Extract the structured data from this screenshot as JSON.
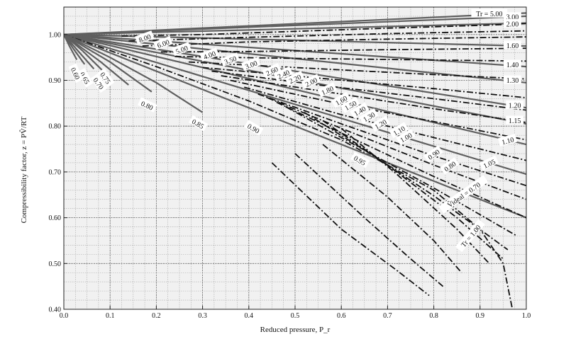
{
  "chart_data": {
    "type": "line",
    "title": "",
    "xlabel": "Reduced pressure, P_r",
    "ylabel": "Compressibility factor, z = PV̂/RT",
    "xlim": [
      0.0,
      1.0
    ],
    "ylim": [
      0.4,
      1.06
    ],
    "grid": true,
    "x_ticks": [
      "0.0",
      "0.1",
      "0.2",
      "0.3",
      "0.4",
      "0.5",
      "0.6",
      "0.7",
      "0.8",
      "0.9",
      "1.0"
    ],
    "y_ticks": [
      "0.40",
      "0.50",
      "0.60",
      "0.70",
      "0.80",
      "0.90",
      "1.00"
    ],
    "series": [
      {
        "family": "Tr",
        "name": "5.00",
        "label": "Tr = 5.00",
        "style": "solid",
        "x": [
          0,
          1
        ],
        "y": [
          1.0,
          1.047
        ]
      },
      {
        "family": "Tr",
        "name": "3.00",
        "label": "3.00",
        "style": "solid",
        "x": [
          0,
          1
        ],
        "y": [
          1.0,
          1.04
        ]
      },
      {
        "family": "Tr",
        "name": "2.00",
        "label": "2.00",
        "style": "solid",
        "x": [
          0,
          1
        ],
        "y": [
          1.0,
          1.025
        ]
      },
      {
        "family": "Tr",
        "name": "1.60",
        "label": "1.60",
        "style": "solid",
        "x": [
          0,
          1
        ],
        "y": [
          1.0,
          0.975
        ]
      },
      {
        "family": "Tr",
        "name": "1.40",
        "label": "1.40",
        "style": "solid",
        "x": [
          0,
          1
        ],
        "y": [
          1.0,
          0.93
        ]
      },
      {
        "family": "Tr",
        "name": "1.30",
        "label": "1.30",
        "style": "solid",
        "x": [
          0,
          1
        ],
        "y": [
          1.0,
          0.895
        ]
      },
      {
        "family": "Tr",
        "name": "1.20",
        "label": "1.20",
        "style": "solid",
        "x": [
          0,
          1
        ],
        "y": [
          1.0,
          0.84
        ]
      },
      {
        "family": "Tr",
        "name": "1.15",
        "label": "1.15",
        "style": "solid",
        "x": [
          0,
          1
        ],
        "y": [
          1.0,
          0.805
        ]
      },
      {
        "family": "Tr",
        "name": "1.10",
        "label": "1.10",
        "style": "solid",
        "x": [
          0,
          1
        ],
        "y": [
          1.0,
          0.76
        ]
      },
      {
        "family": "Tr",
        "name": "1.05",
        "label": "1.05",
        "style": "solid",
        "x": [
          0,
          1
        ],
        "y": [
          1.0,
          0.695
        ]
      },
      {
        "family": "Tr",
        "name": "1.00",
        "label": "Tr = 1.00",
        "style": "solid-black",
        "x": [
          0,
          0.2,
          0.4,
          0.6,
          0.8,
          0.9,
          0.95,
          0.97
        ],
        "y": [
          1.0,
          0.93,
          0.855,
          0.77,
          0.66,
          0.575,
          0.5,
          0.4
        ]
      },
      {
        "family": "Tr",
        "name": "0.95",
        "label": "0.95",
        "style": "solid",
        "x": [
          0,
          1
        ],
        "y": [
          1.0,
          0.6
        ]
      },
      {
        "family": "Tr",
        "name": "0.90",
        "label": "0.90",
        "style": "solid",
        "x": [
          0,
          0.02,
          0.1,
          0.2,
          0.3
        ],
        "y": [
          1.0,
          0.99,
          0.95,
          0.895,
          0.83
        ]
      },
      {
        "family": "Tr",
        "name": "0.85",
        "label": "0.85",
        "style": "solid",
        "x": [
          0,
          0.02,
          0.1,
          0.19
        ],
        "y": [
          1.0,
          0.988,
          0.94,
          0.875
        ]
      },
      {
        "family": "Tr",
        "name": "0.80",
        "label": "0.80",
        "style": "solid",
        "x": [
          0,
          0.02,
          0.08,
          0.14
        ],
        "y": [
          1.0,
          0.985,
          0.94,
          0.89
        ]
      },
      {
        "family": "Tr",
        "name": "0.75",
        "label": "0.75",
        "style": "solid",
        "x": [
          0,
          0.04,
          0.09
        ],
        "y": [
          1.0,
          0.965,
          0.915
        ]
      },
      {
        "family": "Tr",
        "name": "0.70",
        "label": "0.70",
        "style": "solid",
        "x": [
          0,
          0.03,
          0.065
        ],
        "y": [
          1.0,
          0.965,
          0.925
        ]
      },
      {
        "family": "Tr",
        "name": "0.65",
        "label": "0.65",
        "style": "solid",
        "x": [
          0,
          0.02,
          0.045
        ],
        "y": [
          1.0,
          0.97,
          0.935
        ]
      },
      {
        "family": "Tr",
        "name": "0.60",
        "label": "0.60",
        "style": "solid",
        "x": [
          0,
          0.012,
          0.028
        ],
        "y": [
          1.0,
          0.975,
          0.945
        ]
      },
      {
        "family": "Videal",
        "name": "8.00",
        "label": "8.00",
        "style": "dashdot",
        "x": [
          0.125,
          0.3,
          0.5,
          0.7,
          0.9,
          1.0
        ],
        "y": [
          0.997,
          1.0,
          1.007,
          1.014,
          1.02,
          1.024
        ]
      },
      {
        "family": "Videal",
        "name": "6.00",
        "label": "6.00",
        "style": "dashdot",
        "x": [
          0.14,
          0.4,
          0.7,
          1.0
        ],
        "y": [
          0.986,
          0.994,
          1.002,
          1.008
        ]
      },
      {
        "family": "Videal",
        "name": "5.00",
        "label": "5.00",
        "style": "dashdot",
        "x": [
          0.17,
          0.4,
          0.7,
          1.0
        ],
        "y": [
          0.975,
          0.984,
          0.99,
          0.995
        ]
      },
      {
        "family": "Videal",
        "name": "4.00",
        "label": "4.00",
        "style": "dashdot",
        "x": [
          0.21,
          0.4,
          0.7,
          1.0
        ],
        "y": [
          0.962,
          0.963,
          0.967,
          0.97
        ]
      },
      {
        "family": "Videal",
        "name": "3.50",
        "label": "3.50",
        "style": "dashdot",
        "x": [
          0.24,
          0.5,
          0.75,
          1.0
        ],
        "y": [
          0.952,
          0.948,
          0.945,
          0.942
        ]
      },
      {
        "family": "Videal",
        "name": "3.00",
        "label": "3.00",
        "style": "dashdot",
        "x": [
          0.27,
          0.5,
          0.75,
          1.0
        ],
        "y": [
          0.94,
          0.928,
          0.915,
          0.903
        ]
      },
      {
        "family": "Videal",
        "name": "2.60",
        "label": "2.60",
        "style": "dashdot",
        "x": [
          0.3,
          0.55,
          0.8,
          1.0
        ],
        "y": [
          0.928,
          0.905,
          0.882,
          0.862
        ]
      },
      {
        "family": "Videal",
        "name": "2.40",
        "label": "2.40",
        "style": "dashdot",
        "x": [
          0.32,
          0.55,
          0.8,
          1.0
        ],
        "y": [
          0.92,
          0.89,
          0.86,
          0.835
        ]
      },
      {
        "family": "Videal",
        "name": "2.20",
        "label": "2.20",
        "style": "dashdot",
        "x": [
          0.34,
          0.6,
          0.8,
          1.0
        ],
        "y": [
          0.91,
          0.87,
          0.838,
          0.808
        ]
      },
      {
        "family": "Videal",
        "name": "2.00",
        "label": "2.00",
        "style": "dashdot",
        "x": [
          0.36,
          0.6,
          0.8,
          1.0
        ],
        "y": [
          0.9,
          0.848,
          0.81,
          0.77
        ]
      },
      {
        "family": "Videal",
        "name": "1.80",
        "label": "1.80",
        "style": "dashdot",
        "x": [
          0.39,
          0.6,
          0.8,
          1.0
        ],
        "y": [
          0.885,
          0.825,
          0.775,
          0.725
        ]
      },
      {
        "family": "Videal",
        "name": "1.60",
        "label": "1.60",
        "style": "dashdot",
        "x": [
          0.42,
          0.6,
          0.8,
          1.0
        ],
        "y": [
          0.87,
          0.805,
          0.735,
          0.67
        ]
      },
      {
        "family": "Videal",
        "name": "1.50",
        "label": "1.50",
        "style": "dashdot",
        "x": [
          0.44,
          0.6,
          0.8,
          1.0
        ],
        "y": [
          0.862,
          0.795,
          0.715,
          0.64
        ]
      },
      {
        "family": "Videal",
        "name": "1.40",
        "label": "1.40",
        "style": "dashdot",
        "x": [
          0.46,
          0.6,
          0.8,
          1.0
        ],
        "y": [
          0.852,
          0.785,
          0.69,
          0.6
        ]
      },
      {
        "family": "Videal",
        "name": "1.30",
        "label": "1.30",
        "style": "dashdot",
        "x": [
          0.48,
          0.6,
          0.8,
          0.98
        ],
        "y": [
          0.842,
          0.775,
          0.665,
          0.56
        ]
      },
      {
        "family": "Videal",
        "name": "1.20",
        "label": "1.20",
        "style": "dashdot",
        "x": [
          0.52,
          0.65,
          0.8,
          0.96
        ],
        "y": [
          0.83,
          0.748,
          0.648,
          0.53
        ]
      },
      {
        "family": "Videal",
        "name": "1.10",
        "label": "1.10",
        "style": "dashdot",
        "x": [
          0.56,
          0.7,
          0.85,
          0.95
        ],
        "y": [
          0.812,
          0.715,
          0.6,
          0.51
        ]
      },
      {
        "family": "Videal",
        "name": "1.00",
        "label": "1.00",
        "style": "dashdot",
        "x": [
          0.6,
          0.72,
          0.85,
          0.92
        ],
        "y": [
          0.795,
          0.695,
          0.575,
          0.5
        ]
      },
      {
        "family": "Videal",
        "name": "0.90",
        "label": "0.90",
        "style": "dashdot",
        "x": [
          0.56,
          0.7,
          0.8,
          0.86
        ],
        "y": [
          0.76,
          0.645,
          0.55,
          0.48
        ]
      },
      {
        "family": "Videal",
        "name": "0.80",
        "label": "0.80",
        "style": "dashdot",
        "x": [
          0.5,
          0.65,
          0.75,
          0.82
        ],
        "y": [
          0.74,
          0.6,
          0.51,
          0.45
        ]
      },
      {
        "family": "Videal",
        "name": "0.70",
        "label": "V̂ideal = 0.70",
        "style": "dashdot",
        "x": [
          0.45,
          0.6,
          0.72,
          0.79
        ],
        "y": [
          0.72,
          0.575,
          0.485,
          0.43
        ]
      }
    ]
  }
}
